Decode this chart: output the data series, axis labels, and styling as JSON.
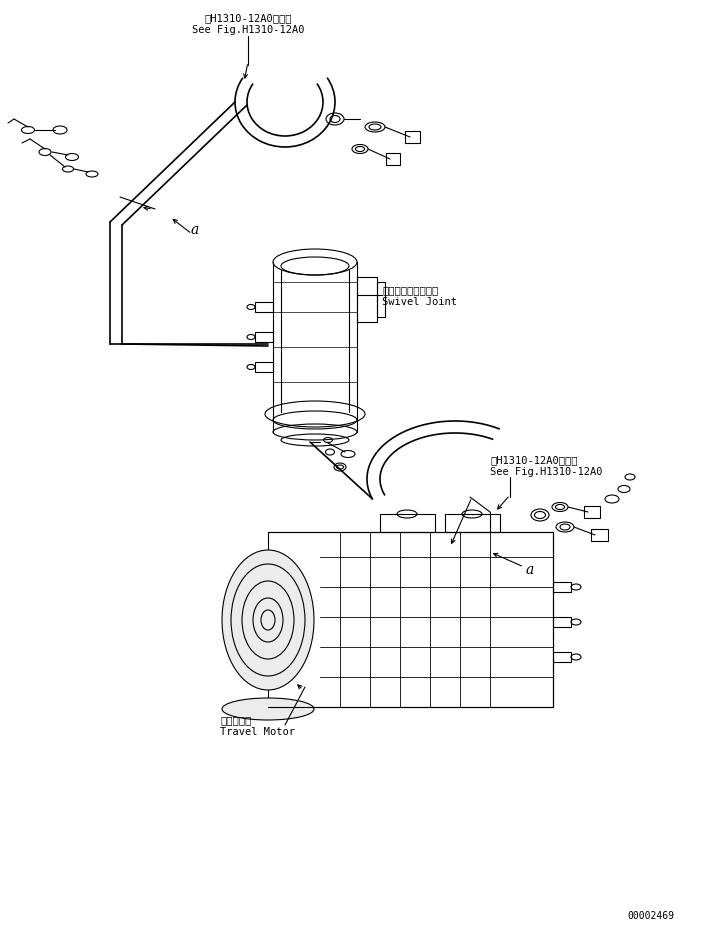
{
  "bg_color": "#ffffff",
  "line_color": "#000000",
  "fig_width": 7.01,
  "fig_height": 9.28,
  "dpi": 100,
  "top_label_1": "第H1310-12A0図参照",
  "top_label_2": "See Fig.H1310-12A0",
  "swivel_label_1": "スイベルジョイント",
  "swivel_label_2": "Swivel Joint",
  "right_label_1": "第H1310-12A0図参照",
  "right_label_2": "See Fig.H1310-12A0",
  "motor_label_1": "走行モータ",
  "motor_label_2": "Travel Motor",
  "page_number": "00002469",
  "label_a": "a"
}
